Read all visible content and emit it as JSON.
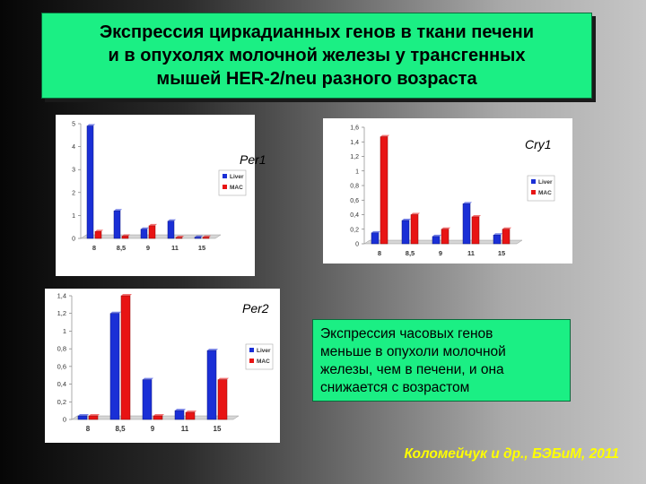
{
  "title": {
    "lines": [
      "Экспрессия циркадианных генов в ткани печени",
      "и в опухолях молочной железы у трансгенных",
      "мышей HER-2/neu разного возраста"
    ]
  },
  "note": {
    "lines": [
      "Экспрессия часовых генов",
      "меньше в опухоли молочной",
      "железы, чем в печени, и она",
      "снижается  с возрастом"
    ]
  },
  "citation": "Коломейчук и др., БЭБиМ, 2011",
  "colors": {
    "liver": "#1a2fd6",
    "mac": "#e81414"
  },
  "chart_data": [
    {
      "id": "per1",
      "type": "bar",
      "title": "Per1",
      "categories": [
        "8",
        "8,5",
        "9",
        "11",
        "15"
      ],
      "series": [
        {
          "name": "Liver",
          "values": [
            4.9,
            1.2,
            0.4,
            0.75,
            0.05
          ]
        },
        {
          "name": "MAC",
          "values": [
            0.3,
            0.1,
            0.55,
            0.03,
            0.05
          ]
        }
      ],
      "ylim": [
        0,
        5
      ],
      "yticks": [
        "0",
        "1",
        "2",
        "3",
        "4",
        "5"
      ],
      "legend": "right"
    },
    {
      "id": "cry1",
      "type": "bar",
      "title": "Cry1",
      "categories": [
        "8",
        "8,5",
        "9",
        "11",
        "15"
      ],
      "series": [
        {
          "name": "Liver",
          "values": [
            0.15,
            0.32,
            0.1,
            0.55,
            0.12
          ]
        },
        {
          "name": "MAC",
          "values": [
            1.47,
            0.4,
            0.2,
            0.37,
            0.2
          ]
        }
      ],
      "ylim": [
        0,
        1.6
      ],
      "yticks": [
        "0",
        "0,2",
        "0,4",
        "0,6",
        "0,8",
        "1",
        "1,2",
        "1,4",
        "1,6"
      ],
      "legend": "right"
    },
    {
      "id": "per2",
      "type": "bar",
      "title": "Per2",
      "categories": [
        "8",
        "8,5",
        "9",
        "11",
        "15"
      ],
      "series": [
        {
          "name": "Liver",
          "values": [
            0.04,
            1.2,
            0.45,
            0.1,
            0.78
          ]
        },
        {
          "name": "MAC",
          "values": [
            0.04,
            1.4,
            0.04,
            0.08,
            0.45
          ]
        }
      ],
      "ylim": [
        0,
        1.4
      ],
      "yticks": [
        "0",
        "0,2",
        "0,4",
        "0,6",
        "0,8",
        "1",
        "1,2",
        "1,4"
      ],
      "legend": "right"
    }
  ]
}
